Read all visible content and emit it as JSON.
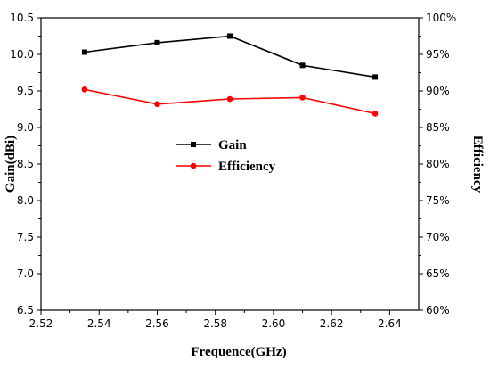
{
  "chart_data": {
    "type": "line",
    "xlabel": "Frequence(GHz)",
    "ylabel": "Gain(dBi)",
    "y2label": "Efficiency",
    "xlim": [
      2.52,
      2.65
    ],
    "ylim": [
      6.5,
      10.5
    ],
    "y2lim": [
      60,
      100
    ],
    "x_ticks": [
      "2.52",
      "2.54",
      "2.56",
      "2.58",
      "2.60",
      "2.62",
      "2.64"
    ],
    "y_ticks": [
      "6.5",
      "7.0",
      "7.5",
      "8.0",
      "8.5",
      "9.0",
      "9.5",
      "10.0",
      "10.5"
    ],
    "y2_ticks": [
      "60%",
      "65%",
      "70%",
      "75%",
      "80%",
      "85%",
      "90%",
      "95%",
      "100%"
    ],
    "grid": false,
    "legend_position": "center",
    "series": [
      {
        "name": "Gain",
        "axis": "left",
        "color": "#000000",
        "marker": "square",
        "x": [
          2.535,
          2.56,
          2.585,
          2.61,
          2.635
        ],
        "y": [
          10.03,
          10.16,
          10.25,
          9.85,
          9.69
        ]
      },
      {
        "name": "Efficiency",
        "axis": "right",
        "color": "#ff0000",
        "marker": "circle",
        "x": [
          2.535,
          2.56,
          2.585,
          2.61,
          2.635
        ],
        "y": [
          90.2,
          88.2,
          88.9,
          89.1,
          86.9
        ]
      }
    ]
  }
}
